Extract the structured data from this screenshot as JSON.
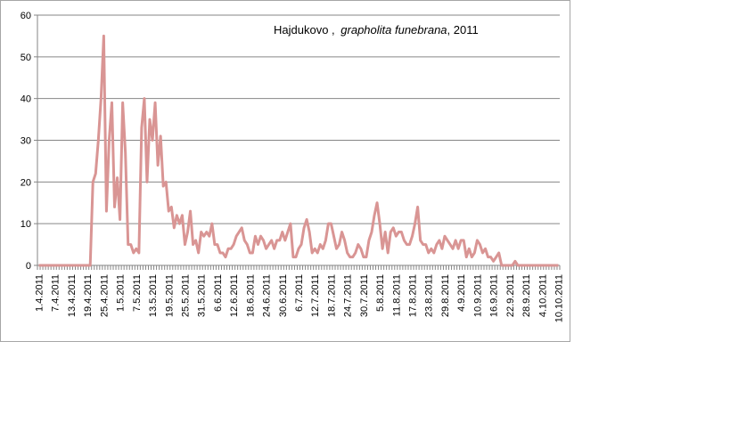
{
  "chart_data": {
    "type": "line",
    "title_prefix": "Hajdukovo ,",
    "title_italic": "grapholita funebrana",
    "title_suffix": ", 2011",
    "xlabel": "",
    "ylabel": "",
    "ylim": [
      0,
      60
    ],
    "yticks": [
      0,
      10,
      20,
      30,
      40,
      50,
      60
    ],
    "grid": "horizontal",
    "legend": "none",
    "line_color": "#d99594",
    "x_start": "1.4.2011",
    "x_end": "10.10.2011",
    "x_tick_labels": [
      "1.4.2011",
      "7.4.2011",
      "13.4.2011",
      "19.4.2011",
      "25.4.2011",
      "1.5.2011",
      "7.5.2011",
      "13.5.2011",
      "19.5.2011",
      "25.5.2011",
      "31.5.2011",
      "6.6.2011",
      "12.6.2011",
      "18.6.2011",
      "24.6.2011",
      "30.6.2011",
      "6.7.2011",
      "12.7.2011",
      "18.7.2011",
      "24.7.2011",
      "30.7.2011",
      "5.8.2011",
      "11.8.2011",
      "17.8.2011",
      "23.8.2011",
      "29.8.2011",
      "4.9.2011",
      "10.9.2011",
      "16.9.2011",
      "22.9.2011",
      "28.9.2011",
      "4.10.2011",
      "10.10.2011"
    ],
    "series": [
      {
        "values": [
          0,
          0,
          0,
          0,
          0,
          0,
          0,
          0,
          0,
          0,
          0,
          0,
          0,
          0,
          0,
          0,
          0,
          0,
          0,
          0,
          20,
          22,
          30,
          40,
          55,
          13,
          30,
          39,
          14,
          21,
          11,
          39,
          27,
          5,
          5,
          3,
          4,
          3,
          33,
          40,
          20,
          35,
          30,
          39,
          24,
          31,
          19,
          20,
          13,
          14,
          9,
          12,
          10,
          12,
          5,
          8,
          13,
          5,
          6,
          3,
          8,
          7,
          8,
          7,
          10,
          5,
          5,
          3,
          3,
          2,
          4,
          4,
          5,
          7,
          8,
          9,
          6,
          5,
          3,
          3,
          7,
          5,
          7,
          6,
          4,
          5,
          6,
          4,
          6,
          6,
          8,
          6,
          8,
          10,
          2,
          2,
          4,
          5,
          9,
          11,
          8,
          3,
          4,
          3,
          5,
          4,
          6,
          10,
          10,
          7,
          4,
          5,
          8,
          6,
          3,
          2,
          2,
          3,
          5,
          4,
          2,
          2,
          6,
          8,
          12,
          15,
          10,
          4,
          8,
          3,
          8,
          9,
          7,
          8,
          8,
          6,
          5,
          5,
          7,
          10,
          14,
          6,
          5,
          5,
          3,
          4,
          3,
          5,
          6,
          4,
          7,
          6,
          5,
          4,
          6,
          4,
          6,
          6,
          2,
          4,
          2,
          3,
          6,
          5,
          3,
          4,
          2,
          2,
          1,
          2,
          3,
          0,
          0,
          0,
          0,
          0,
          1,
          0,
          0,
          0,
          0,
          0,
          0,
          0,
          0,
          0,
          0,
          0,
          0,
          0,
          0,
          0,
          0
        ]
      }
    ]
  }
}
